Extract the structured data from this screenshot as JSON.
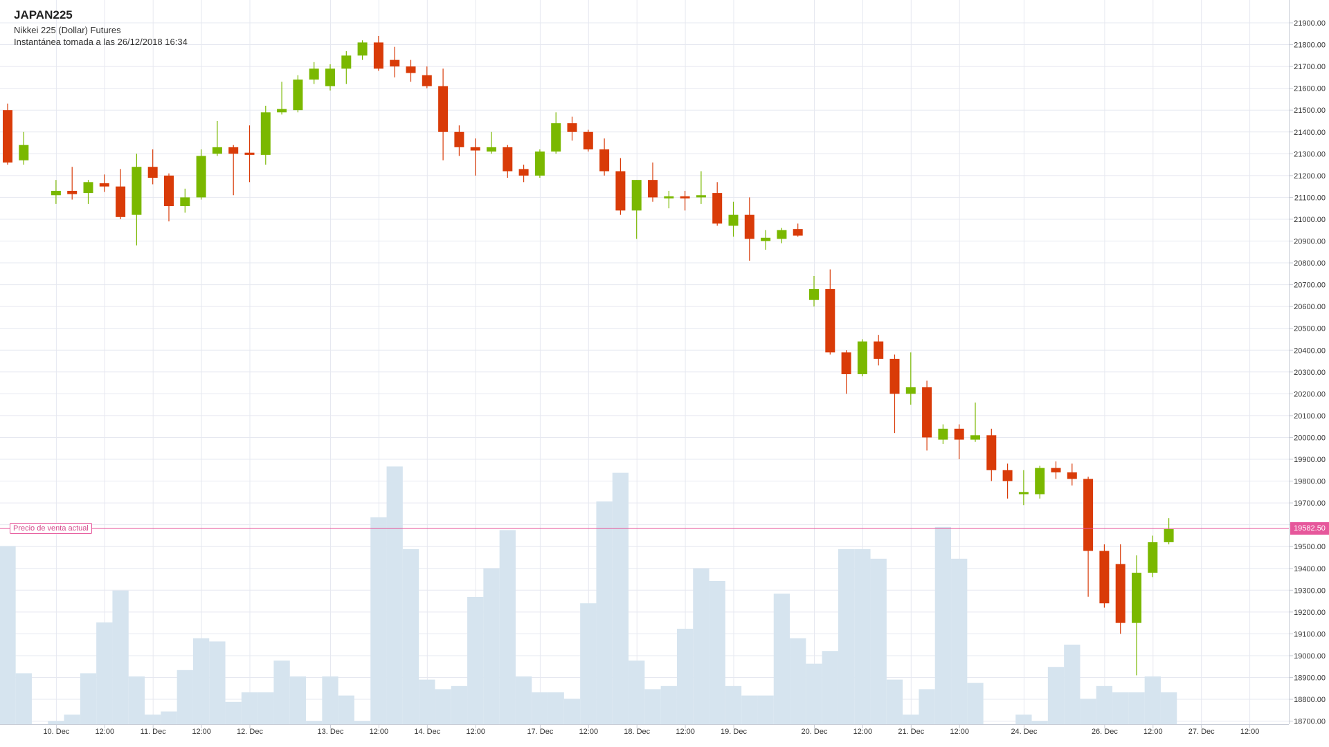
{
  "header": {
    "symbol": "JAPAN225",
    "name": "Nikkei 225 (Dollar) Futures",
    "snapshot": "Instantánea tomada a las 26/12/2018 16:34"
  },
  "current_price": {
    "label": "Precio de venta actual",
    "value_text": "19582.50",
    "value": 19582.5,
    "color": "#e6579b"
  },
  "colors": {
    "up": "#7ab800",
    "down": "#d93b08",
    "volume": "#d6e4ef",
    "grid": "#e6e8f0",
    "text": "#333333"
  },
  "chart_data": {
    "type": "candlestick",
    "interval": "4h",
    "y_axis": {
      "min": 18700,
      "max": 21900,
      "ticks": [
        "18700.00",
        "18800.00",
        "18900.00",
        "19000.00",
        "19100.00",
        "19200.00",
        "19300.00",
        "19400.00",
        "19500.00",
        "19600.00",
        "19700.00",
        "19800.00",
        "19900.00",
        "20000.00",
        "20100.00",
        "20200.00",
        "20300.00",
        "20400.00",
        "20500.00",
        "20600.00",
        "20700.00",
        "20800.00",
        "20900.00",
        "21000.00",
        "21100.00",
        "21200.00",
        "21300.00",
        "21400.00",
        "21500.00",
        "21600.00",
        "21700.00",
        "21800.00",
        "21900.00"
      ],
      "position": "right"
    },
    "x_ticks": [
      {
        "i": 3,
        "label": "10. Dec"
      },
      {
        "i": 6,
        "label": "12:00"
      },
      {
        "i": 9,
        "label": "11. Dec"
      },
      {
        "i": 12,
        "label": "12:00"
      },
      {
        "i": 15,
        "label": "12. Dec"
      },
      {
        "i": 20,
        "label": "13. Dec"
      },
      {
        "i": 23,
        "label": "12:00"
      },
      {
        "i": 26,
        "label": "14. Dec"
      },
      {
        "i": 29,
        "label": "12:00"
      },
      {
        "i": 33,
        "label": "17. Dec"
      },
      {
        "i": 36,
        "label": "12:00"
      },
      {
        "i": 39,
        "label": "18. Dec"
      },
      {
        "i": 42,
        "label": "12:00"
      },
      {
        "i": 45,
        "label": "19. Dec"
      },
      {
        "i": 50,
        "label": "20. Dec"
      },
      {
        "i": 53,
        "label": "12:00"
      },
      {
        "i": 56,
        "label": "21. Dec"
      },
      {
        "i": 59,
        "label": "12:00"
      },
      {
        "i": 63,
        "label": "24. Dec"
      },
      {
        "i": 68,
        "label": "26. Dec"
      },
      {
        "i": 71,
        "label": "12:00"
      },
      {
        "i": 74,
        "label": "27. Dec"
      },
      {
        "i": 77,
        "label": "12:00"
      }
    ],
    "grid": true,
    "volume_scale_max": 100,
    "candles": [
      {
        "i": 0,
        "o": 21500,
        "h": 21530,
        "l": 21250,
        "c": 21260,
        "v": 56
      },
      {
        "i": 1,
        "o": 21270,
        "h": 21400,
        "l": 21250,
        "c": 21340,
        "v": 16
      },
      {
        "i": 3,
        "o": 21110,
        "h": 21180,
        "l": 21070,
        "c": 21130,
        "v": 1
      },
      {
        "i": 4,
        "o": 21130,
        "h": 21240,
        "l": 21090,
        "c": 21115,
        "v": 3
      },
      {
        "i": 5,
        "o": 21120,
        "h": 21180,
        "l": 21070,
        "c": 21170,
        "v": 16
      },
      {
        "i": 6,
        "o": 21165,
        "h": 21205,
        "l": 21125,
        "c": 21150,
        "v": 32
      },
      {
        "i": 7,
        "o": 21150,
        "h": 21230,
        "l": 21000,
        "c": 21010,
        "v": 42
      },
      {
        "i": 8,
        "o": 21020,
        "h": 21300,
        "l": 20880,
        "c": 21240,
        "v": 15
      },
      {
        "i": 9,
        "o": 21240,
        "h": 21320,
        "l": 21160,
        "c": 21190,
        "v": 3
      },
      {
        "i": 10,
        "o": 21200,
        "h": 21210,
        "l": 20990,
        "c": 21060,
        "v": 4
      },
      {
        "i": 11,
        "o": 21060,
        "h": 21140,
        "l": 21030,
        "c": 21100,
        "v": 17
      },
      {
        "i": 12,
        "o": 21100,
        "h": 21320,
        "l": 21090,
        "c": 21290,
        "v": 27
      },
      {
        "i": 13,
        "o": 21300,
        "h": 21450,
        "l": 21290,
        "c": 21330,
        "v": 26
      },
      {
        "i": 14,
        "o": 21330,
        "h": 21340,
        "l": 21110,
        "c": 21300,
        "v": 7
      },
      {
        "i": 15,
        "o": 21305,
        "h": 21430,
        "l": 21170,
        "c": 21295,
        "v": 10
      },
      {
        "i": 16,
        "o": 21295,
        "h": 21520,
        "l": 21250,
        "c": 21490,
        "v": 10
      },
      {
        "i": 17,
        "o": 21490,
        "h": 21630,
        "l": 21480,
        "c": 21505,
        "v": 20
      },
      {
        "i": 18,
        "o": 21500,
        "h": 21660,
        "l": 21490,
        "c": 21640,
        "v": 15
      },
      {
        "i": 19,
        "o": 21640,
        "h": 21720,
        "l": 21620,
        "c": 21690,
        "v": 1
      },
      {
        "i": 20,
        "o": 21610,
        "h": 21710,
        "l": 21590,
        "c": 21690,
        "v": 15
      },
      {
        "i": 21,
        "o": 21690,
        "h": 21770,
        "l": 21620,
        "c": 21750,
        "v": 9
      },
      {
        "i": 22,
        "o": 21750,
        "h": 21820,
        "l": 21730,
        "c": 21810,
        "v": 1
      },
      {
        "i": 23,
        "o": 21810,
        "h": 21840,
        "l": 21680,
        "c": 21690,
        "v": 65
      },
      {
        "i": 24,
        "o": 21730,
        "h": 21790,
        "l": 21650,
        "c": 21700,
        "v": 81
      },
      {
        "i": 25,
        "o": 21700,
        "h": 21730,
        "l": 21630,
        "c": 21670,
        "v": 55
      },
      {
        "i": 26,
        "o": 21660,
        "h": 21700,
        "l": 21600,
        "c": 21610,
        "v": 14
      },
      {
        "i": 27,
        "o": 21610,
        "h": 21690,
        "l": 21270,
        "c": 21400,
        "v": 11
      },
      {
        "i": 28,
        "o": 21400,
        "h": 21430,
        "l": 21290,
        "c": 21330,
        "v": 12
      },
      {
        "i": 29,
        "o": 21330,
        "h": 21370,
        "l": 21200,
        "c": 21315,
        "v": 40
      },
      {
        "i": 30,
        "o": 21310,
        "h": 21400,
        "l": 21300,
        "c": 21330,
        "v": 49
      },
      {
        "i": 31,
        "o": 21330,
        "h": 21340,
        "l": 21190,
        "c": 21220,
        "v": 61
      },
      {
        "i": 32,
        "o": 21230,
        "h": 21250,
        "l": 21170,
        "c": 21200,
        "v": 15
      },
      {
        "i": 33,
        "o": 21200,
        "h": 21320,
        "l": 21190,
        "c": 21310,
        "v": 10
      },
      {
        "i": 34,
        "o": 21310,
        "h": 21490,
        "l": 21300,
        "c": 21440,
        "v": 10
      },
      {
        "i": 35,
        "o": 21440,
        "h": 21470,
        "l": 21360,
        "c": 21400,
        "v": 8
      },
      {
        "i": 36,
        "o": 21400,
        "h": 21410,
        "l": 21310,
        "c": 21320,
        "v": 38
      },
      {
        "i": 37,
        "o": 21320,
        "h": 21370,
        "l": 21200,
        "c": 21220,
        "v": 70
      },
      {
        "i": 38,
        "o": 21220,
        "h": 21280,
        "l": 21020,
        "c": 21040,
        "v": 79
      },
      {
        "i": 39,
        "o": 21040,
        "h": 21180,
        "l": 20910,
        "c": 21180,
        "v": 20
      },
      {
        "i": 40,
        "o": 21180,
        "h": 21260,
        "l": 21080,
        "c": 21100,
        "v": 11
      },
      {
        "i": 41,
        "o": 21100,
        "h": 21130,
        "l": 21050,
        "c": 21105,
        "v": 12
      },
      {
        "i": 42,
        "o": 21105,
        "h": 21130,
        "l": 21040,
        "c": 21100,
        "v": 30
      },
      {
        "i": 43,
        "o": 21100,
        "h": 21220,
        "l": 21070,
        "c": 21110,
        "v": 49
      },
      {
        "i": 44,
        "o": 21120,
        "h": 21170,
        "l": 20970,
        "c": 20980,
        "v": 45
      },
      {
        "i": 45,
        "o": 20970,
        "h": 21080,
        "l": 20920,
        "c": 21020,
        "v": 12
      },
      {
        "i": 46,
        "o": 21020,
        "h": 21100,
        "l": 20810,
        "c": 20910,
        "v": 9
      },
      {
        "i": 47,
        "o": 20900,
        "h": 20950,
        "l": 20860,
        "c": 20915,
        "v": 9
      },
      {
        "i": 48,
        "o": 20910,
        "h": 20960,
        "l": 20890,
        "c": 20950,
        "v": 41
      },
      {
        "i": 49,
        "o": 20955,
        "h": 20980,
        "l": 20920,
        "c": 20925,
        "v": 27
      },
      {
        "i": 50,
        "o": 20630,
        "h": 20740,
        "l": 20600,
        "c": 20680,
        "v": 19
      },
      {
        "i": 51,
        "o": 20680,
        "h": 20770,
        "l": 20380,
        "c": 20390,
        "v": 23
      },
      {
        "i": 52,
        "o": 20390,
        "h": 20400,
        "l": 20200,
        "c": 20290,
        "v": 55
      },
      {
        "i": 53,
        "o": 20290,
        "h": 20450,
        "l": 20280,
        "c": 20440,
        "v": 55
      },
      {
        "i": 54,
        "o": 20440,
        "h": 20470,
        "l": 20330,
        "c": 20360,
        "v": 52
      },
      {
        "i": 55,
        "o": 20360,
        "h": 20380,
        "l": 20020,
        "c": 20200,
        "v": 14
      },
      {
        "i": 56,
        "o": 20200,
        "h": 20390,
        "l": 20150,
        "c": 20230,
        "v": 3
      },
      {
        "i": 57,
        "o": 20230,
        "h": 20260,
        "l": 19940,
        "c": 20000,
        "v": 11
      },
      {
        "i": 58,
        "o": 19990,
        "h": 20060,
        "l": 19970,
        "c": 20040,
        "v": 62
      },
      {
        "i": 59,
        "o": 20040,
        "h": 20060,
        "l": 19900,
        "c": 19990,
        "v": 52
      },
      {
        "i": 60,
        "o": 19990,
        "h": 20160,
        "l": 19980,
        "c": 20010,
        "v": 13
      },
      {
        "i": 61,
        "o": 20010,
        "h": 20040,
        "l": 19800,
        "c": 19850,
        "v": 0
      },
      {
        "i": 62,
        "o": 19850,
        "h": 19880,
        "l": 19720,
        "c": 19800,
        "v": 0
      },
      {
        "i": 63,
        "o": 19740,
        "h": 19850,
        "l": 19690,
        "c": 19750,
        "v": 3
      },
      {
        "i": 64,
        "o": 19740,
        "h": 19870,
        "l": 19720,
        "c": 19860,
        "v": 1
      },
      {
        "i": 65,
        "o": 19860,
        "h": 19890,
        "l": 19810,
        "c": 19840,
        "v": 18
      },
      {
        "i": 66,
        "o": 19840,
        "h": 19880,
        "l": 19780,
        "c": 19810,
        "v": 25
      },
      {
        "i": 67,
        "o": 19810,
        "h": 19820,
        "l": 19270,
        "c": 19480,
        "v": 8
      },
      {
        "i": 68,
        "o": 19480,
        "h": 19510,
        "l": 19220,
        "c": 19240,
        "v": 12
      },
      {
        "i": 69,
        "o": 19420,
        "h": 19510,
        "l": 19100,
        "c": 19150,
        "v": 10
      },
      {
        "i": 70,
        "o": 19150,
        "h": 19460,
        "l": 18910,
        "c": 19380,
        "v": 10
      },
      {
        "i": 71,
        "o": 19380,
        "h": 19550,
        "l": 19360,
        "c": 19520,
        "v": 15
      },
      {
        "i": 72,
        "o": 19520,
        "h": 19630,
        "l": 19510,
        "c": 19580,
        "v": 10
      }
    ]
  }
}
